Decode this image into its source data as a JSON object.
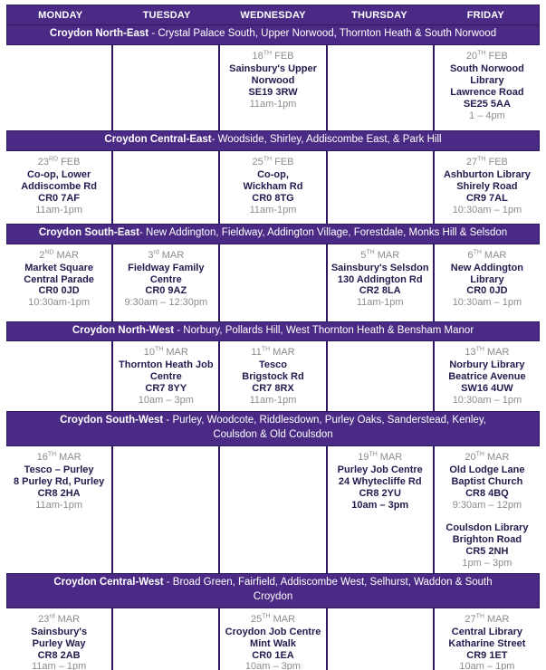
{
  "colors": {
    "band_purple": "#4a2a85",
    "divider_dark_purple": "#2c1760",
    "venue_text": "#211c4e",
    "muted_text": "#8c8c8c",
    "band_text": "#ffffff"
  },
  "days": [
    "MONDAY",
    "TUESDAY",
    "WEDNESDAY",
    "THURSDAY",
    "FRIDAY"
  ],
  "sections": [
    {
      "title": "Croydon North-East",
      "areas": " - Crystal Palace South, Upper Norwood, Thornton Heath & South Norwood",
      "cells": [
        [],
        [],
        [
          {
            "date": {
              "day": "18",
              "ord": "TH",
              "month": "FEB"
            },
            "venue_lines": [
              "Sainsbury's Upper",
              "Norwood",
              "SE19 3RW"
            ],
            "time": "11am-1pm",
            "time_bold": false
          }
        ],
        [],
        [
          {
            "date": {
              "day": "20",
              "ord": "TH",
              "month": "FEB"
            },
            "venue_lines": [
              "South Norwood",
              "Library",
              "Lawrence Road",
              "SE25 5AA"
            ],
            "time": "1 – 4pm",
            "time_bold": false
          }
        ]
      ]
    },
    {
      "title": "Croydon Central-East",
      "areas": "- Woodside, Shirley, Addiscombe East, & Park Hill",
      "cells": [
        [
          {
            "date": {
              "day": "23",
              "ord": "RD",
              "month": "FEB"
            },
            "venue_lines": [
              "Co-op, Lower",
              "Addiscombe Rd",
              "CR0 7AF"
            ],
            "time": "11am-1pm",
            "time_bold": false
          }
        ],
        [],
        [
          {
            "date": {
              "day": "25",
              "ord": "TH",
              "month": "FEB"
            },
            "venue_lines": [
              "Co-op,",
              "Wickham Rd",
              "CR0 8TG"
            ],
            "time": "11am-1pm",
            "time_bold": false
          }
        ],
        [],
        [
          {
            "date": {
              "day": "27",
              "ord": "TH",
              "month": "FEB"
            },
            "venue_lines": [
              "Ashburton Library",
              "Shirely Road",
              "CR9 7AL"
            ],
            "time": "10:30am – 1pm",
            "time_bold": false
          }
        ]
      ]
    },
    {
      "title": "Croydon South-East",
      "areas": "- New Addington, Fieldway, Addington Village, Forestdale, Monks Hill & Selsdon",
      "cells": [
        [
          {
            "date": {
              "day": "2",
              "ord": "ND",
              "month": "MAR"
            },
            "venue_lines": [
              "Market Square",
              "Central Parade",
              "CR0 0JD"
            ],
            "time": "10:30am-1pm",
            "time_bold": false
          }
        ],
        [
          {
            "date": {
              "day": "3",
              "ord": "rd",
              "month": "MAR"
            },
            "venue_lines": [
              "Fieldway Family",
              "Centre",
              "CR0 9AZ"
            ],
            "time": "9:30am – 12:30pm",
            "time_bold": false
          }
        ],
        [],
        [
          {
            "date": {
              "day": "5",
              "ord": "TH",
              "month": "MAR"
            },
            "venue_lines": [
              "Sainsbury's Selsdon",
              "130 Addington Rd",
              "CR2 8LA"
            ],
            "time": "11am-1pm",
            "time_bold": false
          }
        ],
        [
          {
            "date": {
              "day": "6",
              "ord": "TH",
              "month": "MAR"
            },
            "venue_lines": [
              "New Addington",
              "Library",
              "CR0 0JD"
            ],
            "time": "10:30am – 1pm",
            "time_bold": false
          }
        ]
      ]
    },
    {
      "title": "Croydon North-West",
      "areas": " - Norbury, Pollards Hill, West Thornton Heath & Bensham Manor",
      "cells": [
        [],
        [
          {
            "date": {
              "day": "10",
              "ord": "TH",
              "month": "MAR"
            },
            "venue_lines": [
              "Thornton Heath Job",
              "Centre",
              "CR7 8YY"
            ],
            "time": "10am – 3pm",
            "time_bold": false
          }
        ],
        [
          {
            "date": {
              "day": "11",
              "ord": "TH",
              "month": "MAR"
            },
            "venue_lines": [
              "Tesco",
              "Brigstock Rd",
              "CR7 8RX"
            ],
            "time": "11am-1pm",
            "time_bold": false
          }
        ],
        [],
        [
          {
            "date": {
              "day": "13",
              "ord": "TH",
              "month": "MAR"
            },
            "venue_lines": [
              "Norbury Library",
              "Beatrice Avenue",
              "SW16 4UW"
            ],
            "time": "10:30am – 1pm",
            "time_bold": false
          }
        ]
      ]
    },
    {
      "title": "Croydon South-West",
      "areas": " - Purley, Woodcote, Riddlesdown, Purley Oaks, Sanderstead, Kenley,\nCoulsdon & Old Coulsdon",
      "cells": [
        [
          {
            "date": {
              "day": "16",
              "ord": "TH",
              "month": "MAR"
            },
            "venue_lines": [
              "Tesco – Purley",
              "8 Purley Rd, Purley",
              "CR8 2HA"
            ],
            "time": "11am-1pm",
            "time_bold": false
          }
        ],
        [],
        [],
        [
          {
            "date": {
              "day": "19",
              "ord": "TH",
              "month": "MAR"
            },
            "venue_lines": [
              "Purley Job Centre",
              "24 Whytecliffe Rd",
              "CR8 2YU"
            ],
            "time": "10am – 3pm",
            "time_bold": true
          }
        ],
        [
          {
            "date": {
              "day": "20",
              "ord": "TH",
              "month": "MAR"
            },
            "venue_lines": [
              "Old Lodge Lane",
              "Baptist Church",
              "CR8 4BQ"
            ],
            "time": "9:30am – 12pm",
            "time_bold": false
          },
          {
            "venue_lines": [
              "Coulsdon Library",
              "Brighton Road",
              "CR5 2NH"
            ],
            "time": "1pm – 3pm",
            "time_bold": false
          }
        ]
      ]
    },
    {
      "title": "Croydon Central-West",
      "areas": " - Broad Green, Fairfield, Addiscombe West, Selhurst, Waddon & South\nCroydon",
      "cells": [
        [
          {
            "date": {
              "day": "23",
              "ord": "rd",
              "month": "MAR"
            },
            "venue_lines": [
              "Sainsbury's",
              "Purley Way",
              "CR8 2AB"
            ],
            "time": "11am – 1pm",
            "time_bold": false
          }
        ],
        [],
        [
          {
            "date": {
              "day": "25",
              "ord": "TH",
              "month": "MAR"
            },
            "venue_lines": [
              "Croydon Job Centre",
              "Mint Walk",
              "CR0 1EA"
            ],
            "time": "10am – 3pm",
            "time_bold": false
          }
        ],
        [],
        [
          {
            "date": {
              "day": "27",
              "ord": "TH",
              "month": "MAR"
            },
            "venue_lines": [
              "Central Library",
              "Katharine Street",
              "CR9 1ET"
            ],
            "time": "10am – 1pm",
            "time_bold": false
          }
        ]
      ]
    }
  ]
}
